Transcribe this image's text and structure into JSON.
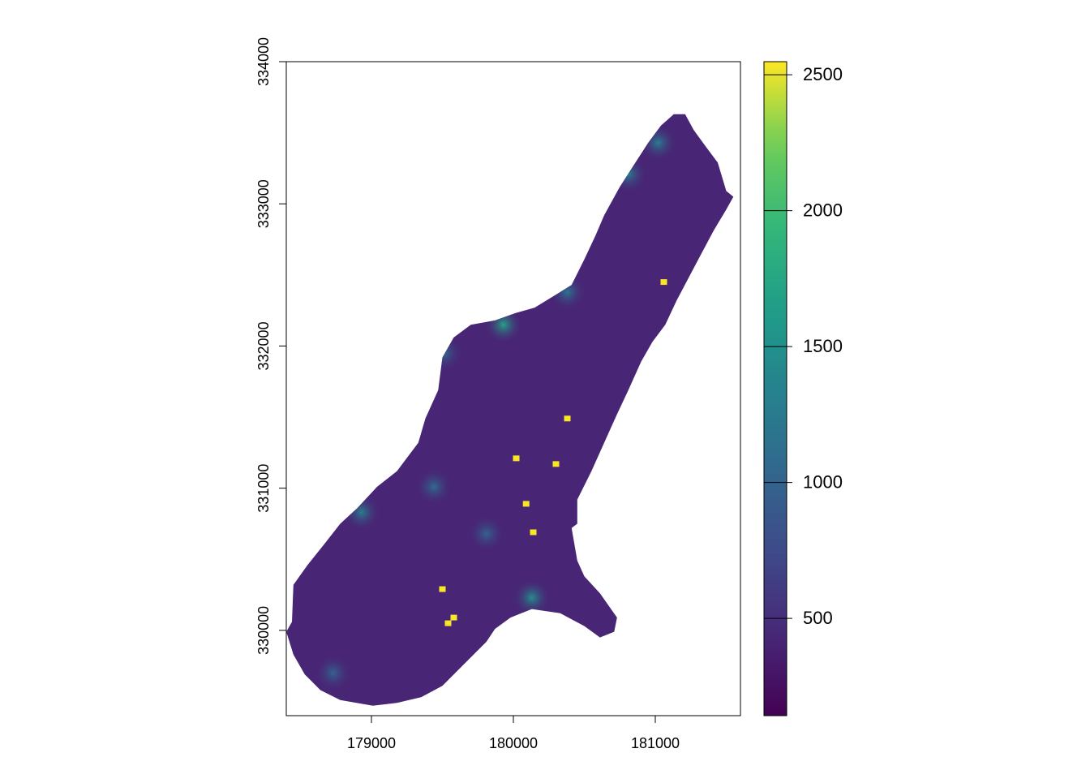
{
  "chart_data": {
    "type": "raster",
    "xlim": [
      178400,
      181600
    ],
    "ylim": [
      329400,
      334000
    ],
    "xticks": [
      179000,
      180000,
      181000
    ],
    "yticks": [
      330000,
      331000,
      332000,
      333000,
      334000
    ],
    "clim": [
      142,
      2548
    ],
    "cticks": [
      500,
      1000,
      1500,
      2000,
      2500
    ],
    "colormap": "viridis",
    "base_value": 420,
    "outline": {
      "x": [
        181130,
        181210,
        181270,
        181350,
        181440,
        181500,
        181550,
        181500,
        181410,
        181330,
        181240,
        181150,
        181070,
        180980,
        180900,
        180810,
        180730,
        180640,
        180550,
        180450,
        180450,
        180410,
        180450,
        180500,
        180610,
        180730,
        180710,
        180610,
        180500,
        180330,
        180130,
        179980,
        179870,
        179810,
        179670,
        179500,
        179350,
        179180,
        179010,
        178780,
        178640,
        178530,
        178450,
        178400,
        178440,
        178450,
        178550,
        178670,
        178780,
        178900,
        179040,
        179180,
        179330,
        179380,
        179470,
        179500,
        179580,
        179700,
        179870,
        180010,
        180150,
        180330,
        180410,
        180500,
        180580,
        180640,
        180750,
        180840,
        180950,
        181040
      ],
      "y": [
        333630,
        333630,
        333520,
        333410,
        333290,
        333090,
        333050,
        332960,
        332810,
        332660,
        332490,
        332320,
        332150,
        332030,
        331890,
        331690,
        331520,
        331320,
        331120,
        330920,
        330750,
        330720,
        330490,
        330380,
        330260,
        330090,
        329990,
        329950,
        330030,
        330120,
        330150,
        330090,
        330010,
        329920,
        329780,
        329610,
        329530,
        329490,
        329470,
        329510,
        329580,
        329690,
        329830,
        329990,
        330060,
        330320,
        330460,
        330610,
        330750,
        330860,
        331010,
        331120,
        331320,
        331490,
        331690,
        331920,
        332060,
        332150,
        332180,
        332230,
        332270,
        332380,
        332430,
        332610,
        332780,
        332920,
        333120,
        333260,
        333430,
        333550
      ]
    },
    "hotspots": {
      "x": [
        179930,
        180130,
        178930,
        179440,
        179810,
        178730,
        181020,
        180810,
        180380,
        179510
      ],
      "y": [
        332150,
        330230,
        330830,
        331010,
        330680,
        329700,
        333430,
        333210,
        332380,
        331950
      ],
      "values": [
        1700,
        1500,
        1300,
        1100,
        1000,
        1000,
        1300,
        1300,
        1200,
        1100
      ]
    },
    "cells": {
      "x": [
        181060,
        180380,
        180020,
        180300,
        180090,
        180140,
        179500,
        179580,
        179540
      ],
      "y": [
        332450,
        331490,
        331210,
        331170,
        330890,
        330690,
        330290,
        330090,
        330050
      ],
      "values": [
        2540,
        2540,
        2540,
        2540,
        2540,
        2540,
        2540,
        2540,
        2540
      ]
    }
  }
}
